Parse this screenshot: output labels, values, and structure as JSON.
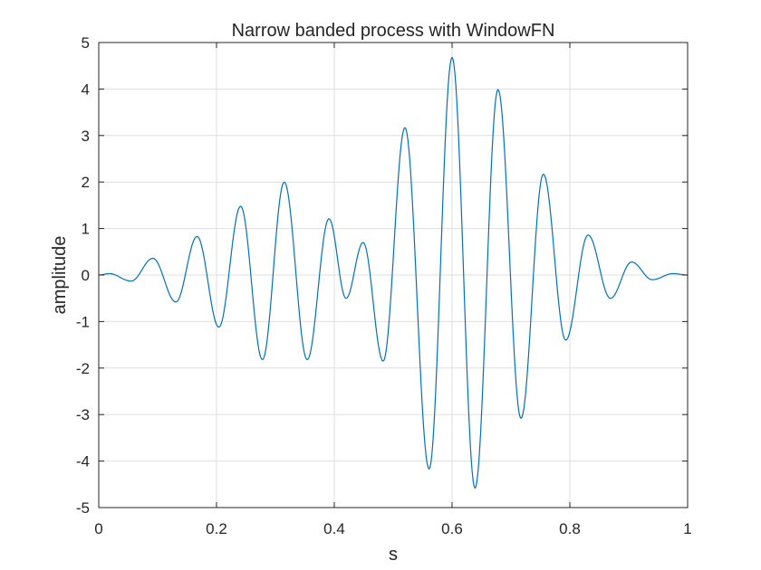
{
  "chart_data": {
    "type": "line",
    "title": "Narrow banded process with WindowFN",
    "xlabel": "s",
    "ylabel": "amplitude",
    "xlim": [
      0,
      1
    ],
    "ylim": [
      -5,
      5
    ],
    "xticks": [
      0,
      0.2,
      0.4,
      0.6,
      0.8,
      1
    ],
    "xtick_labels": [
      "0",
      "0.2",
      "0.4",
      "0.6",
      "0.8",
      "1"
    ],
    "yticks": [
      -5,
      -4,
      -3,
      -2,
      -1,
      0,
      1,
      2,
      3,
      4,
      5
    ],
    "ytick_labels": [
      "-5",
      "-4",
      "-3",
      "-2",
      "-1",
      "0",
      "1",
      "2",
      "3",
      "4",
      "5"
    ],
    "grid": true,
    "series_color": "#0072BD",
    "series": [
      {
        "peaks": [
          {
            "x": 0.0,
            "y": 0.0
          },
          {
            "x": 0.018,
            "y": 0.03
          },
          {
            "x": 0.055,
            "y": -0.13
          },
          {
            "x": 0.092,
            "y": 0.36
          },
          {
            "x": 0.131,
            "y": -0.58
          },
          {
            "x": 0.167,
            "y": 0.83
          },
          {
            "x": 0.204,
            "y": -1.12
          },
          {
            "x": 0.241,
            "y": 1.48
          },
          {
            "x": 0.278,
            "y": -1.82
          },
          {
            "x": 0.315,
            "y": 2.0
          },
          {
            "x": 0.354,
            "y": -1.82
          },
          {
            "x": 0.391,
            "y": 1.21
          },
          {
            "x": 0.42,
            "y": -0.5
          },
          {
            "x": 0.449,
            "y": 0.7
          },
          {
            "x": 0.483,
            "y": -1.85
          },
          {
            "x": 0.52,
            "y": 3.17
          },
          {
            "x": 0.561,
            "y": -4.17
          },
          {
            "x": 0.6,
            "y": 4.68
          },
          {
            "x": 0.639,
            "y": -4.58
          },
          {
            "x": 0.678,
            "y": 3.99
          },
          {
            "x": 0.717,
            "y": -3.08
          },
          {
            "x": 0.755,
            "y": 2.17
          },
          {
            "x": 0.793,
            "y": -1.4
          },
          {
            "x": 0.831,
            "y": 0.86
          },
          {
            "x": 0.869,
            "y": -0.5
          },
          {
            "x": 0.905,
            "y": 0.28
          },
          {
            "x": 0.94,
            "y": -0.1
          },
          {
            "x": 0.975,
            "y": 0.03
          },
          {
            "x": 1.0,
            "y": 0.0
          }
        ]
      }
    ]
  }
}
